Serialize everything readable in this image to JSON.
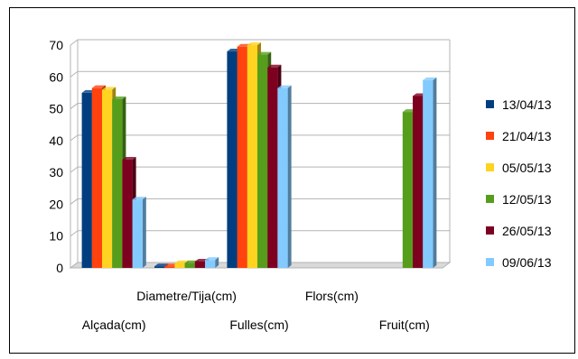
{
  "chart_data": {
    "type": "bar",
    "style": "3d-clustered-column",
    "categories": [
      "Alçada(cm)",
      "Diametre/Tija(cm)",
      "Fulles(cm)",
      "Flors(cm)",
      "Fruit(cm)"
    ],
    "series": [
      {
        "name": "13/04/13",
        "color": "#003e7f",
        "values": [
          55,
          0.5,
          68,
          0,
          0
        ]
      },
      {
        "name": "21/04/13",
        "color": "#ff420e",
        "values": [
          56.5,
          0.5,
          69.5,
          0,
          0
        ]
      },
      {
        "name": "05/05/13",
        "color": "#ffd320",
        "values": [
          56,
          1.5,
          70,
          0,
          0
        ]
      },
      {
        "name": "12/05/13",
        "color": "#579d1c",
        "values": [
          53,
          1.5,
          67,
          0,
          49
        ]
      },
      {
        "name": "26/05/13",
        "color": "#7e0021",
        "values": [
          34,
          2,
          63,
          0,
          54
        ]
      },
      {
        "name": "09/06/13",
        "color": "#83caff",
        "values": [
          21.5,
          2.5,
          56.5,
          0,
          59
        ]
      }
    ],
    "yticks": [
      0,
      10,
      20,
      30,
      40,
      50,
      60,
      70
    ],
    "ylim": [
      0,
      70
    ],
    "grid": true,
    "legend_position": "right",
    "title": "",
    "xlabel": "",
    "ylabel": ""
  }
}
